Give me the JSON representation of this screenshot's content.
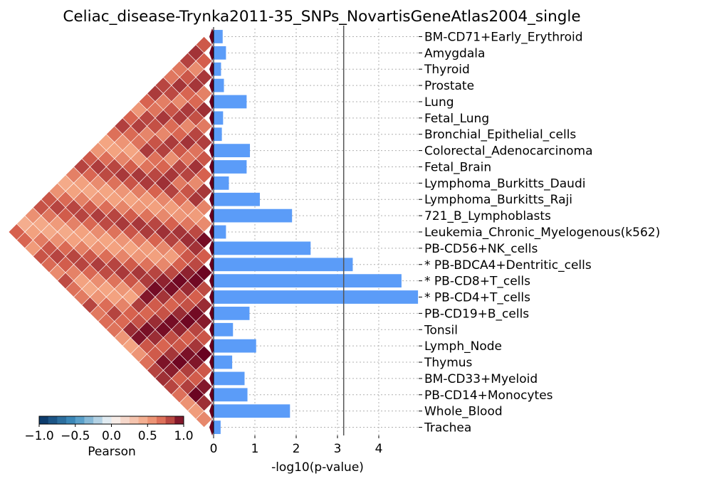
{
  "chart_data": {
    "type": "bar",
    "orientation": "horizontal",
    "title": "Celiac_disease-Trynka2011-35_SNPs_NovartisGeneAtlas2004_single",
    "xlabel": "-log10(p-value)",
    "xticks": [
      0,
      1,
      2,
      3,
      4
    ],
    "xlim": [
      0,
      5.0
    ],
    "grid": true,
    "threshold": 3.15,
    "colors": {
      "bar": "#5b9cf8",
      "threshold": "#555555",
      "grid": "#b0b0b0"
    },
    "categories": [
      "BM-CD71+Early_Erythroid",
      "Amygdala",
      "Thyroid",
      "Prostate",
      "Lung",
      "Fetal_Lung",
      "Bronchial_Epithelial_cells",
      "Colorectal_Adenocarcinoma",
      "Fetal_Brain",
      "Lymphoma_Burkitts_Daudi",
      "Lymphoma_Burkitts_Raji",
      "721_B_Lymphoblasts",
      "Leukemia_Chronic_Myelogenous(k562)",
      "PB-CD56+NK_cells",
      "* PB-BDCA4+Dentritic_cells",
      "* PB-CD8+T_cells",
      "* PB-CD4+T_cells",
      "PB-CD19+B_cells",
      "Tonsil",
      "Lymph_Node",
      "Thymus",
      "BM-CD33+Myeloid",
      "PB-CD14+Monocytes",
      "Whole_Blood",
      "Trachea"
    ],
    "values": [
      0.22,
      0.3,
      0.18,
      0.25,
      0.8,
      0.23,
      0.2,
      0.88,
      0.8,
      0.37,
      1.12,
      1.9,
      0.3,
      2.35,
      3.37,
      4.55,
      4.95,
      0.87,
      0.47,
      1.03,
      0.45,
      0.75,
      0.82,
      1.85,
      0.17
    ],
    "heatmap": {
      "type": "heatmap",
      "colorbar_label": "Pearson",
      "colorbar_ticks": [
        "−1.0",
        "−0.5",
        "0.0",
        "0.5",
        "1.0"
      ],
      "colorbar_range": [
        -1.0,
        1.0
      ]
    }
  }
}
